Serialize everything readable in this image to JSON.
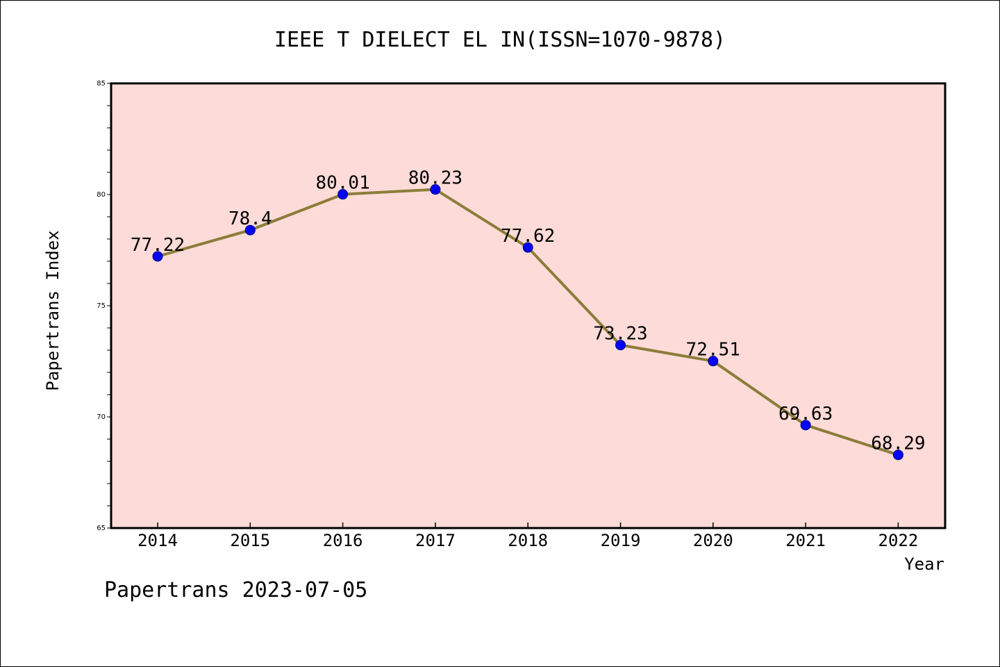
{
  "chart_data": {
    "type": "line",
    "title": "IEEE T DIELECT EL IN(ISSN=1070-9878)",
    "xlabel": "Year",
    "ylabel": "Papertrans Index",
    "categories": [
      "2014",
      "2015",
      "2016",
      "2017",
      "2018",
      "2019",
      "2020",
      "2021",
      "2022"
    ],
    "series": [
      {
        "values": [
          77.22,
          78.4,
          80.01,
          80.23,
          77.62,
          73.23,
          72.51,
          69.63,
          68.29
        ],
        "data_labels": [
          "77.22",
          "78.4",
          "80.01",
          "80.23",
          "77.62",
          "73.23",
          "72.51",
          "69.63",
          "68.29"
        ]
      }
    ],
    "ylim": [
      65,
      85
    ],
    "y_ticks": [
      "65",
      "70",
      "75",
      "80",
      "85"
    ],
    "grid": false,
    "legend": "none",
    "colors": {
      "plot_background": "#fddbd8",
      "line": "#8b7d3a",
      "marker": "#0000ff",
      "axes": "#000000"
    }
  },
  "footer": {
    "text": "Papertrans 2023-07-05"
  }
}
